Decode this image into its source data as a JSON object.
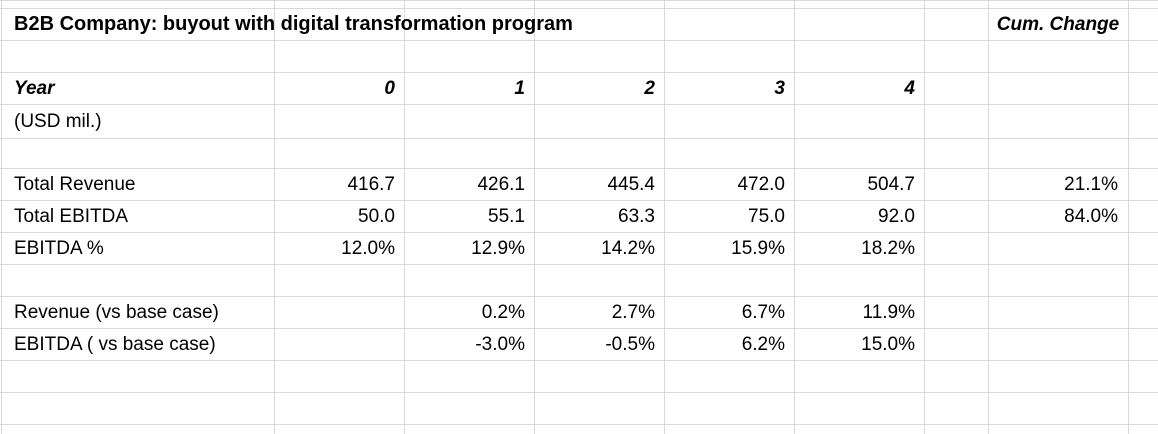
{
  "title": "B2B Company: buyout with digital transformation program",
  "cum_header": "Cum. Change",
  "year_label": "Year",
  "unit_label": "(USD mil.)",
  "years": [
    "0",
    "1",
    "2",
    "3",
    "4"
  ],
  "rows": [
    {
      "label": "Total Revenue",
      "values": [
        "416.7",
        "426.1",
        "445.4",
        "472.0",
        "504.7"
      ],
      "cum": "21.1%"
    },
    {
      "label": "Total EBITDA",
      "values": [
        "50.0",
        "55.1",
        "63.3",
        "75.0",
        "92.0"
      ],
      "cum": "84.0%"
    },
    {
      "label": "EBITDA %",
      "values": [
        "12.0%",
        "12.9%",
        "14.2%",
        "15.9%",
        "18.2%"
      ],
      "cum": ""
    },
    {
      "label": "Revenue (vs base case)",
      "values": [
        "",
        "0.2%",
        "2.7%",
        "6.7%",
        "11.9%"
      ],
      "cum": ""
    },
    {
      "label": "EBITDA ( vs base case)",
      "values": [
        "",
        "-3.0%",
        "-0.5%",
        "6.2%",
        "15.0%"
      ],
      "cum": ""
    }
  ]
}
